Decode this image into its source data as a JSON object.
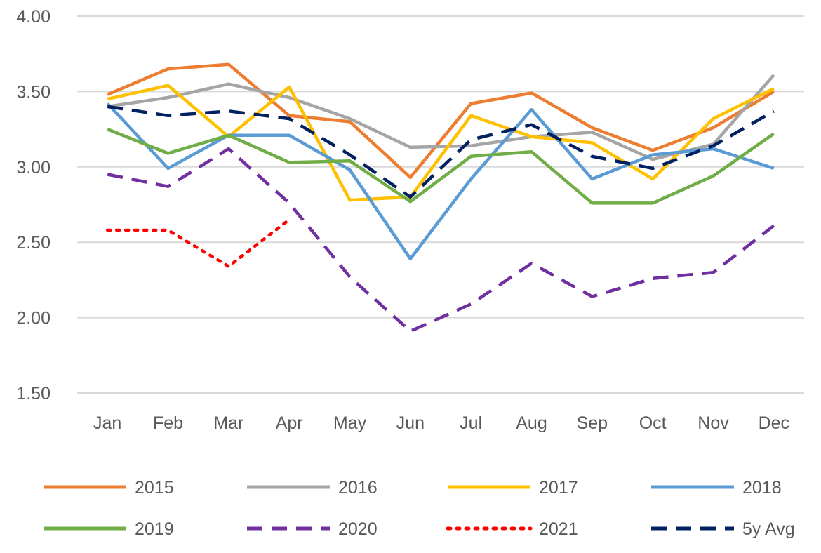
{
  "chart_data": {
    "type": "line",
    "title": "",
    "xlabel": "",
    "ylabel": "",
    "categories": [
      "Jan",
      "Feb",
      "Mar",
      "Apr",
      "May",
      "Jun",
      "Jul",
      "Aug",
      "Sep",
      "Oct",
      "Nov",
      "Dec"
    ],
    "ylim": [
      1.5,
      4.0
    ],
    "yticks": [
      "1.50",
      "2.00",
      "2.50",
      "3.00",
      "3.50",
      "4.00"
    ],
    "grid": "horizontal",
    "legend_position": "bottom",
    "series": [
      {
        "name": "2015",
        "color": "#ED7D31",
        "style": "solid",
        "values": [
          3.48,
          3.65,
          3.68,
          3.34,
          3.3,
          2.93,
          3.42,
          3.49,
          3.26,
          3.11,
          3.26,
          3.5
        ]
      },
      {
        "name": "2016",
        "color": "#A5A5A5",
        "style": "solid",
        "values": [
          3.4,
          3.46,
          3.55,
          3.46,
          3.32,
          3.13,
          3.14,
          3.2,
          3.23,
          3.05,
          3.15,
          3.61
        ]
      },
      {
        "name": "2017",
        "color": "#FFC000",
        "style": "solid",
        "values": [
          3.45,
          3.54,
          3.2,
          3.53,
          2.78,
          2.8,
          3.34,
          3.2,
          3.16,
          2.92,
          3.32,
          3.52
        ]
      },
      {
        "name": "2018",
        "color": "#5B9BD5",
        "style": "solid",
        "values": [
          3.42,
          2.99,
          3.21,
          3.21,
          2.98,
          2.39,
          2.92,
          3.38,
          2.92,
          3.08,
          3.12,
          2.99
        ]
      },
      {
        "name": "2019",
        "color": "#70AD47",
        "style": "solid",
        "values": [
          3.25,
          3.09,
          3.21,
          3.03,
          3.04,
          2.77,
          3.07,
          3.1,
          2.76,
          2.76,
          2.94,
          3.22
        ]
      },
      {
        "name": "2020",
        "color": "#7030A0",
        "style": "dashed",
        "values": [
          2.95,
          2.87,
          3.12,
          2.76,
          2.27,
          1.91,
          2.09,
          2.36,
          2.14,
          2.26,
          2.3,
          2.61
        ]
      },
      {
        "name": "2021",
        "color": "#FF0000",
        "style": "dotted",
        "values": [
          2.58,
          2.58,
          2.34,
          2.65,
          null,
          null,
          null,
          null,
          null,
          null,
          null,
          null
        ]
      },
      {
        "name": "5y Avg",
        "color": "#002060",
        "style": "dashed",
        "values": [
          3.4,
          3.34,
          3.37,
          3.32,
          3.08,
          2.8,
          3.18,
          3.28,
          3.07,
          2.99,
          3.14,
          3.37
        ]
      }
    ]
  }
}
